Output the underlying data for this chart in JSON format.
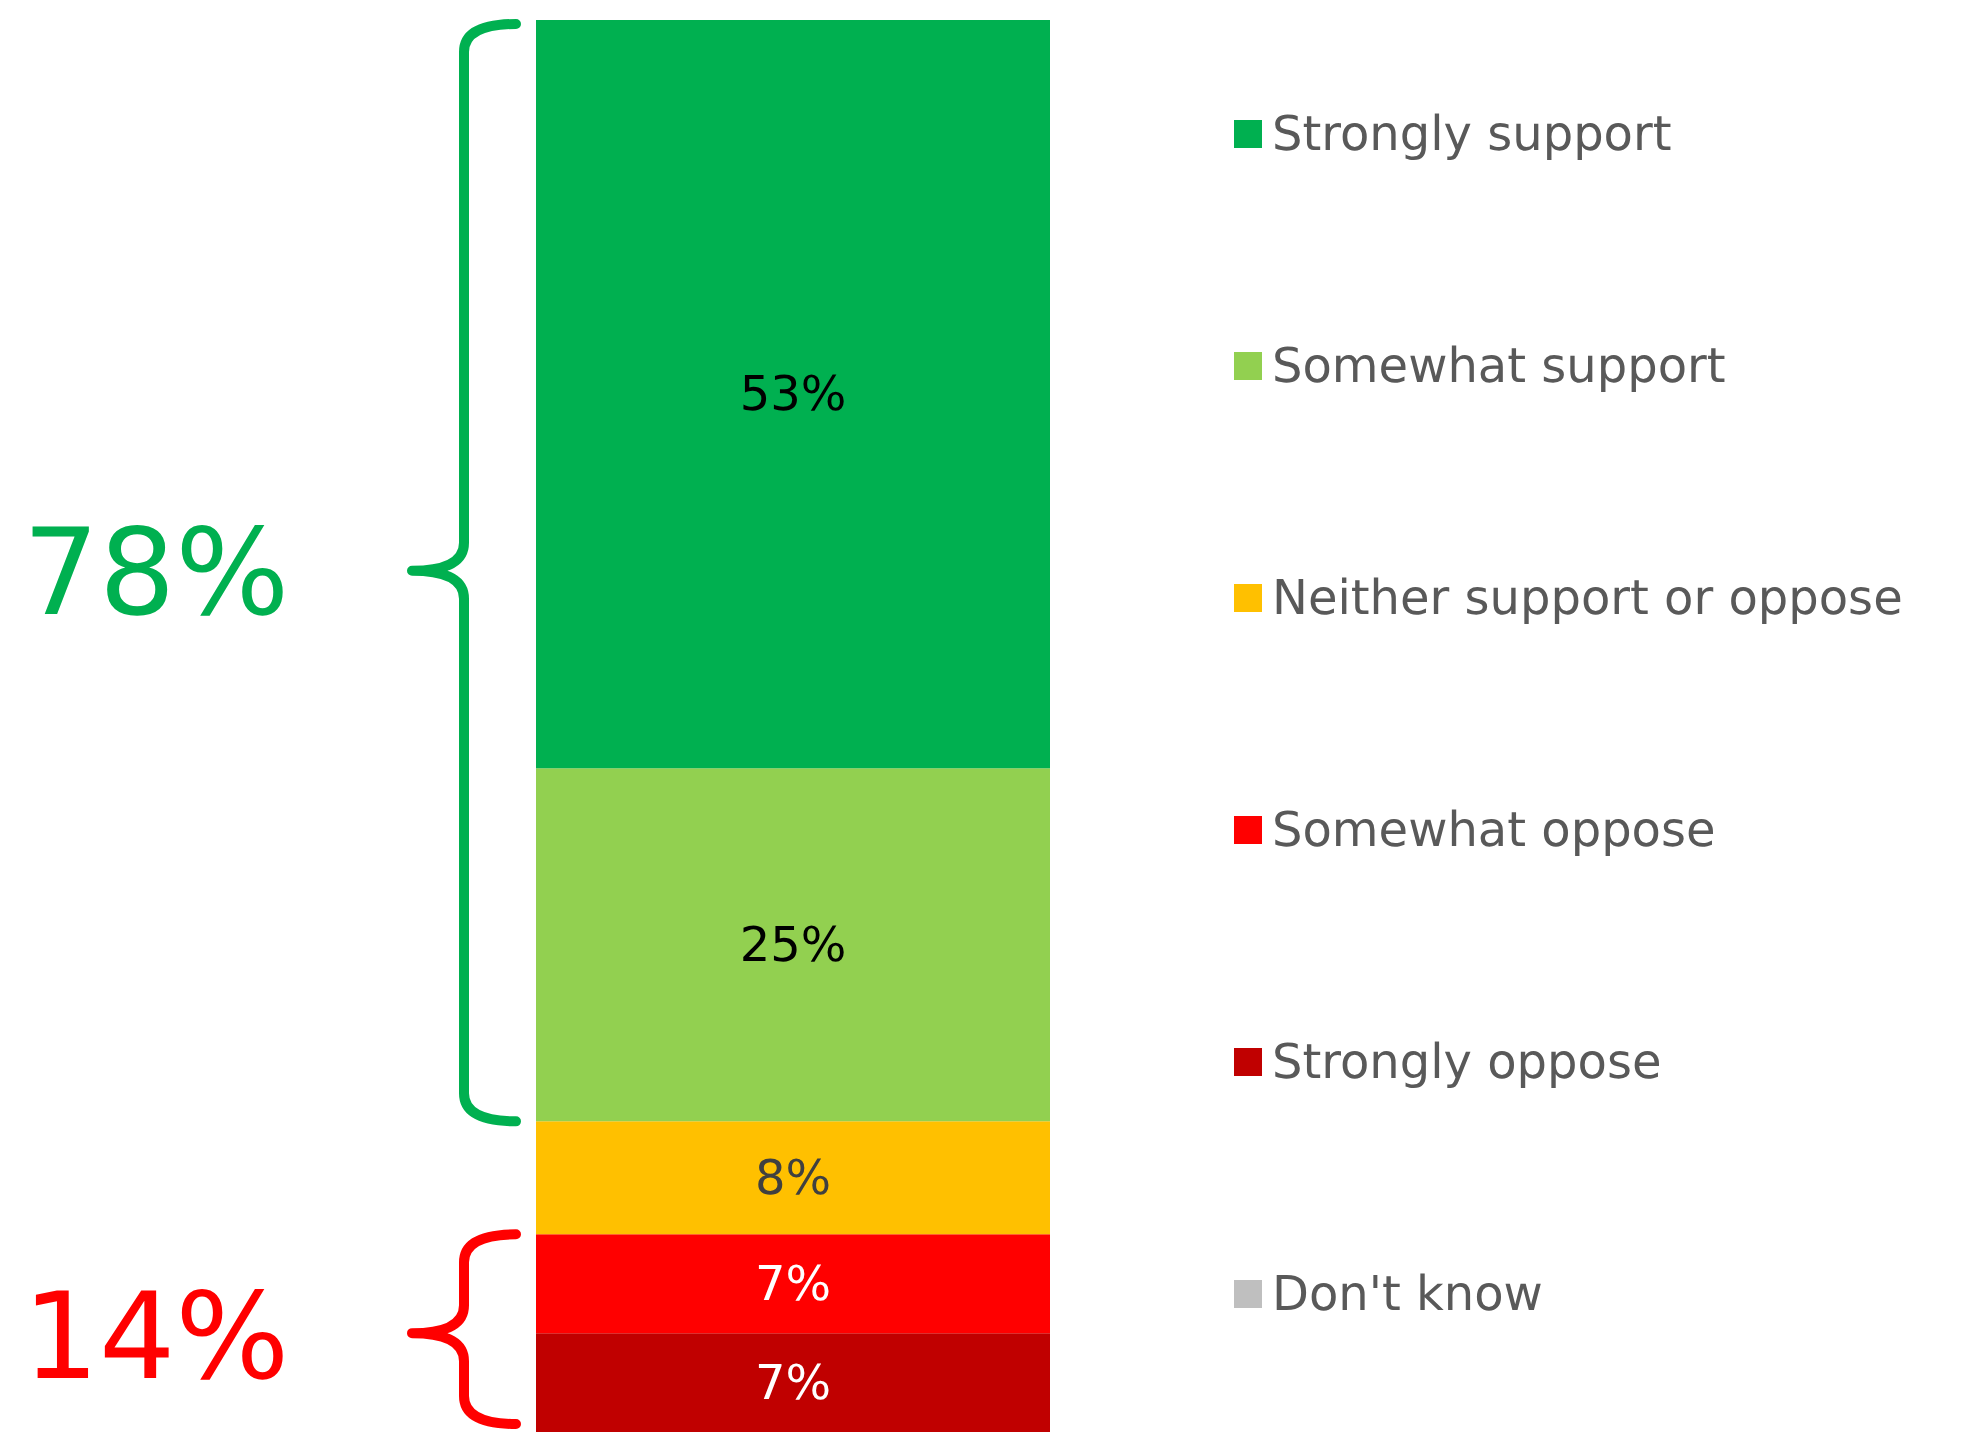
{
  "chart_data": {
    "type": "bar",
    "stacked": true,
    "categories": [
      null
    ],
    "series": [
      {
        "name": "Strongly oppose",
        "color": "#c00000",
        "values": [
          7
        ],
        "value_labels": [
          "7%"
        ]
      },
      {
        "name": "Somewhat oppose",
        "color": "#ff0000",
        "values": [
          7
        ],
        "value_labels": [
          "7%"
        ]
      },
      {
        "name": "Neither support or oppose",
        "color": "#ffc000",
        "values": [
          8
        ],
        "value_labels": [
          "8%"
        ]
      },
      {
        "name": "Somewhat support",
        "color": "#92d050",
        "values": [
          25
        ],
        "value_labels": [
          "25%"
        ]
      },
      {
        "name": "Strongly support",
        "color": "#00b050",
        "values": [
          53
        ],
        "value_labels": [
          "53%"
        ]
      },
      {
        "name": "Don't know",
        "color": "#bfbfbf",
        "values": [
          null
        ],
        "value_labels": [
          null
        ]
      }
    ],
    "tick_labels": false,
    "legend": "right",
    "annotations": [
      "78%",
      "14%"
    ]
  }
}
